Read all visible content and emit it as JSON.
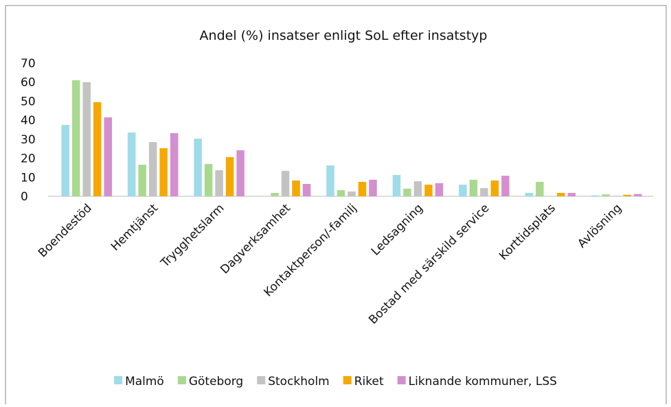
{
  "chart_data": {
    "type": "bar",
    "title": "Andel (%) insatser enligt SoL efter insatstyp",
    "categories": [
      "Boendestöd",
      "Hemtjänst",
      "Trygghetslarm",
      "Dagverksamhet",
      "Kontaktperson/-familj",
      "Ledsagning",
      "Bostad med särskild service",
      "Korttidsplats",
      "Avlösning"
    ],
    "series": [
      {
        "name": "Malmö",
        "color": "#9fdbe8",
        "values": [
          37.5,
          33.5,
          30.3,
          0,
          16.2,
          11.2,
          6.1,
          1.8,
          0.5
        ]
      },
      {
        "name": "Göteborg",
        "color": "#a9d98f",
        "values": [
          61,
          16.6,
          17,
          1.8,
          3.2,
          4,
          8.7,
          7.6,
          1
        ]
      },
      {
        "name": "Stockholm",
        "color": "#c3c3c3",
        "values": [
          60,
          28.5,
          13.7,
          13.4,
          2.5,
          7.9,
          4.3,
          0.2,
          0.3
        ]
      },
      {
        "name": "Riket",
        "color": "#f5a900",
        "values": [
          49.5,
          25.3,
          20.6,
          8.3,
          7.6,
          6.1,
          8.3,
          1.8,
          0.8
        ]
      },
      {
        "name": "Liknande kommuner, LSS",
        "color": "#d48fd0",
        "values": [
          41.5,
          33.2,
          24.2,
          6.5,
          8.7,
          6.9,
          10.8,
          1.8,
          1.2
        ]
      }
    ],
    "ylim": [
      0,
      70
    ],
    "yticks": [
      0,
      10,
      20,
      30,
      40,
      50,
      60,
      70
    ],
    "grid": false,
    "legend": "bottom"
  }
}
